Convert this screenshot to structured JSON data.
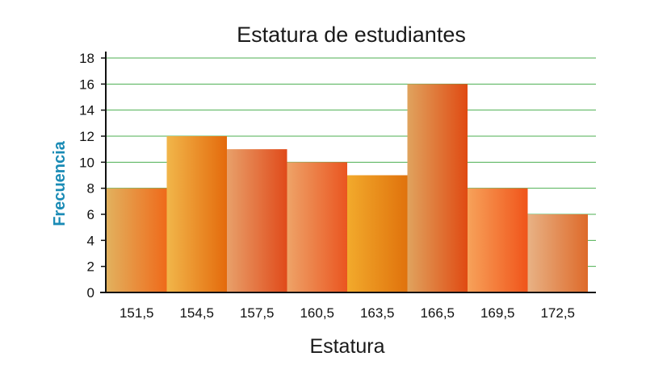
{
  "chart_data": {
    "type": "bar",
    "title": "Estatura de estudiantes",
    "xlabel": "Estatura",
    "ylabel": "Frecuencia",
    "categories": [
      "151,5",
      "154,5",
      "157,5",
      "160,5",
      "163,5",
      "166,5",
      "169,5",
      "172,5"
    ],
    "values": [
      8,
      12,
      11,
      10,
      9,
      16,
      8,
      6
    ],
    "ylim": [
      0,
      18
    ],
    "yticks": [
      "0",
      "2",
      "4",
      "6",
      "8",
      "10",
      "12",
      "14",
      "16",
      "18"
    ],
    "grid": true,
    "grid_color": "#4caf50",
    "bar_colors": [
      [
        "#e2b15e",
        "#ef6a1a"
      ],
      [
        "#f1b64a",
        "#e46a0c"
      ],
      [
        "#e8a06a",
        "#e04a1a"
      ],
      [
        "#eea368",
        "#ea5520"
      ],
      [
        "#f2aa2c",
        "#e0720c"
      ],
      [
        "#e0a35e",
        "#e04a12"
      ],
      [
        "#f7a25a",
        "#f0541a"
      ],
      [
        "#e8b285",
        "#de6a2a"
      ]
    ]
  }
}
